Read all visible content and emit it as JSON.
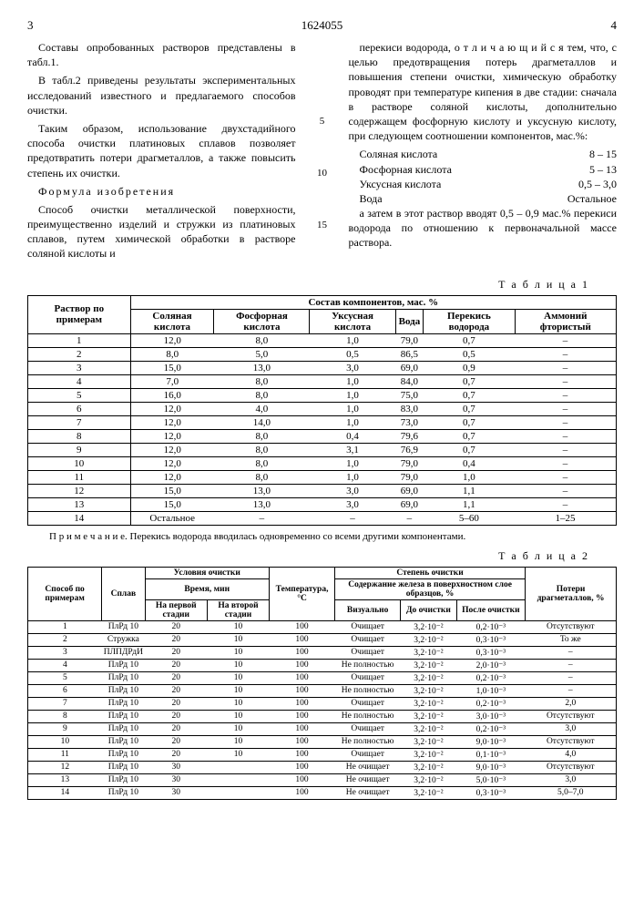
{
  "header": {
    "left_page": "3",
    "doc_number": "1624055",
    "right_page": "4"
  },
  "left_col": {
    "p1": "Составы опробованных растворов представлены в табл.1.",
    "p2": "В табл.2 приведены результаты экспериментальных исследований известного и предлагаемого способов очистки.",
    "p3": "Таким образом, использование двухстадийного способа очистки платиновых сплавов позволяет предотвратить потери драгметаллов, а также повысить степень их очистки.",
    "formula_title": "Формула изобретения",
    "p4": "Способ очистки металлической поверхности, преимущественно изделий и стружки из платиновых сплавов, путем химической обработки в растворе соляной кислоты и"
  },
  "line_nums": {
    "n5": "5",
    "n10": "10",
    "n15": "15"
  },
  "right_col": {
    "p1": "перекиси водорода, о т л и ч а ю щ и й с я тем, что, с целью предотвращения потерь драгметаллов и повышения степени очистки, химическую обработку проводят при температуре кипения в две стадии: сначала в растворе соляной кислоты, дополнительно содержащем фосфорную кислоту и уксусную кислоту, при следующем соотношении компонентов, мас.%:",
    "components": [
      {
        "name": "Соляная кислота",
        "val": "8 – 15"
      },
      {
        "name": "Фосфорная кислота",
        "val": "5 – 13"
      },
      {
        "name": "Уксусная кислота",
        "val": "0,5 – 3,0"
      },
      {
        "name": "Вода",
        "val": "Остальное"
      }
    ],
    "p2": "а затем в этот раствор вводят 0,5 – 0,9 мас.% перекиси водорода по отношению к первоначальной массе раствора."
  },
  "table1": {
    "label": "Т а б л и ц а 1",
    "head_rowspan": "Раствор по примерам",
    "head_colspan": "Состав компонентов, мас. %",
    "cols": [
      "Соляная кислота",
      "Фосфорная кислота",
      "Уксусная кислота",
      "Вода",
      "Перекись водорода",
      "Аммоний фтористый"
    ],
    "rows": [
      [
        "1",
        "12,0",
        "8,0",
        "1,0",
        "79,0",
        "0,7",
        "–"
      ],
      [
        "2",
        "8,0",
        "5,0",
        "0,5",
        "86,5",
        "0,5",
        "–"
      ],
      [
        "3",
        "15,0",
        "13,0",
        "3,0",
        "69,0",
        "0,9",
        "–"
      ],
      [
        "4",
        "7,0",
        "8,0",
        "1,0",
        "84,0",
        "0,7",
        "–"
      ],
      [
        "5",
        "16,0",
        "8,0",
        "1,0",
        "75,0",
        "0,7",
        "–"
      ],
      [
        "6",
        "12,0",
        "4,0",
        "1,0",
        "83,0",
        "0,7",
        "–"
      ],
      [
        "7",
        "12,0",
        "14,0",
        "1,0",
        "73,0",
        "0,7",
        "–"
      ],
      [
        "8",
        "12,0",
        "8,0",
        "0,4",
        "79,6",
        "0,7",
        "–"
      ],
      [
        "9",
        "12,0",
        "8,0",
        "3,1",
        "76,9",
        "0,7",
        "–"
      ],
      [
        "10",
        "12,0",
        "8,0",
        "1,0",
        "79,0",
        "0,4",
        "–"
      ],
      [
        "11",
        "12,0",
        "8,0",
        "1,0",
        "79,0",
        "1,0",
        "–"
      ],
      [
        "12",
        "15,0",
        "13,0",
        "3,0",
        "69,0",
        "1,1",
        "–"
      ],
      [
        "13",
        "15,0",
        "13,0",
        "3,0",
        "69,0",
        "1,1",
        "–"
      ],
      [
        "14",
        "Остальное",
        "–",
        "–",
        "–",
        "5–60",
        "1–25"
      ]
    ],
    "note": "П р и м е ч а н и е. Перекись водорода вводилась одновременно со всеми другими компонентами."
  },
  "table2": {
    "label": "Т а б л и ц а 2",
    "head": {
      "c1": "Способ по примерам",
      "c2": "Сплав",
      "c3": "Условия очистки",
      "c3s": "Время, мин",
      "c3a": "На первой стадии",
      "c3b": "На второй стадии",
      "c4": "Температура, °C",
      "c5": "Степень очистки",
      "c5s": "Содержание железа в поверхностном слое образцов, %",
      "c5a": "Визуально",
      "c5b": "До очистки",
      "c5c": "После очистки",
      "c6": "Потери драгметаллов, %"
    },
    "rows": [
      [
        "1",
        "ПлРд 10",
        "20",
        "10",
        "100",
        "Очищает",
        "3,2·10⁻²",
        "0,2·10⁻³",
        "Отсутствуют"
      ],
      [
        "2",
        "Стружка",
        "20",
        "10",
        "100",
        "Очищает",
        "3,2·10⁻²",
        "0,3·10⁻³",
        "То же"
      ],
      [
        "3",
        "ПЛПДРдИ",
        "20",
        "10",
        "100",
        "Очищает",
        "3,2·10⁻²",
        "0,3·10⁻³",
        "–"
      ],
      [
        "4",
        "ПлРд 10",
        "20",
        "10",
        "100",
        "Не полностью",
        "3,2·10⁻²",
        "2,0·10⁻³",
        "–"
      ],
      [
        "5",
        "ПлРд 10",
        "20",
        "10",
        "100",
        "Очищает",
        "3,2·10⁻²",
        "0,2·10⁻³",
        "–"
      ],
      [
        "6",
        "ПлРд 10",
        "20",
        "10",
        "100",
        "Не полностью",
        "3,2·10⁻²",
        "1,0·10⁻³",
        "–"
      ],
      [
        "7",
        "ПлРд 10",
        "20",
        "10",
        "100",
        "Очищает",
        "3,2·10⁻²",
        "0,2·10⁻³",
        "2,0"
      ],
      [
        "8",
        "ПлРд 10",
        "20",
        "10",
        "100",
        "Не полностью",
        "3,2·10⁻²",
        "3,0·10⁻³",
        "Отсутствуют"
      ],
      [
        "9",
        "ПлРд 10",
        "20",
        "10",
        "100",
        "Очищает",
        "3,2·10⁻²",
        "0,2·10⁻³",
        "3,0"
      ],
      [
        "10",
        "ПлРд 10",
        "20",
        "10",
        "100",
        "Не полностью",
        "3,2·10⁻²",
        "9,0·10⁻³",
        "Отсутствуют"
      ],
      [
        "11",
        "ПлРд 10",
        "20",
        "10",
        "100",
        "Очищает",
        "3,2·10⁻²",
        "0,1·10⁻³",
        "4,0"
      ],
      [
        "12",
        "ПлРд 10",
        "30",
        "",
        "100",
        "Не очищает",
        "3,2·10⁻²",
        "9,0·10⁻³",
        "Отсутствуют"
      ],
      [
        "13",
        "ПлРд 10",
        "30",
        "",
        "100",
        "Не очищает",
        "3,2·10⁻²",
        "5,0·10⁻³",
        "3,0"
      ],
      [
        "14",
        "ПлРд 10",
        "30",
        "",
        "100",
        "Не очищает",
        "3,2·10⁻²",
        "0,3·10⁻³",
        "5,0–7,0"
      ]
    ]
  }
}
